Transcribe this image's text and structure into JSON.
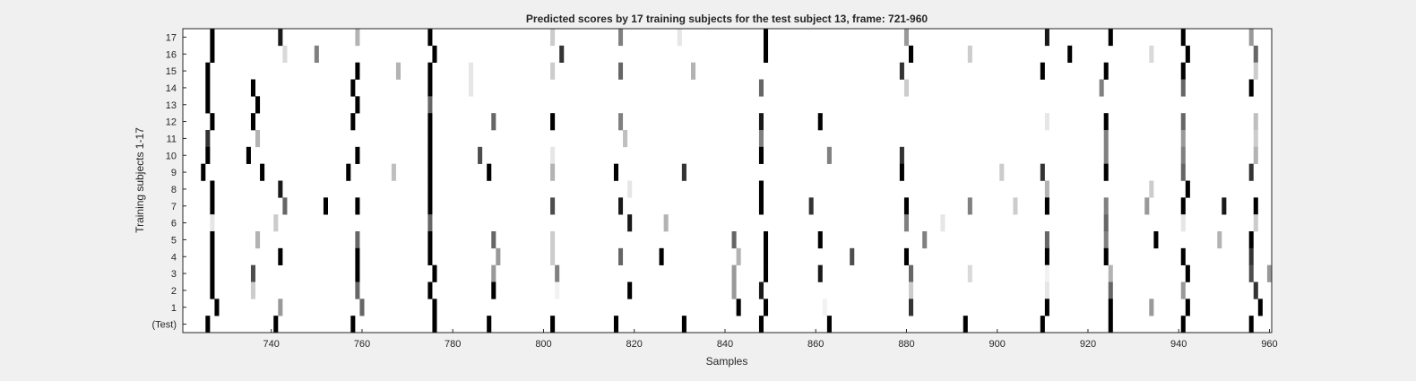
{
  "chart_data": {
    "type": "heatmap",
    "title": "Predicted scores by 17 training subjects for the test subject 13, frame: 721-960",
    "xlabel": "Samples",
    "ylabel": "Training subjects 1-17",
    "xlim": [
      721,
      960
    ],
    "xticks": [
      740,
      760,
      780,
      800,
      820,
      840,
      860,
      880,
      900,
      920,
      940,
      960
    ],
    "row_labels": [
      "17",
      "16",
      "15",
      "14",
      "13",
      "12",
      "11",
      "10",
      "9",
      "8",
      "7",
      "6",
      "5",
      "4",
      "3",
      "2",
      "1",
      "(Test)"
    ],
    "colormap": "gray (white = 0, black = 1)",
    "grid": false,
    "cell_value_unit": "score 0-1 (darkness)",
    "rows": [
      {
        "label": "17",
        "cells": [
          [
            727,
            1
          ],
          [
            742,
            0.9
          ],
          [
            759,
            0.3
          ],
          [
            775,
            1
          ],
          [
            802,
            0.2
          ],
          [
            817,
            0.5
          ],
          [
            830,
            0.1
          ],
          [
            849,
            1
          ],
          [
            880,
            0.4
          ],
          [
            911,
            0.9
          ],
          [
            925,
            1
          ],
          [
            941,
            1
          ],
          [
            956,
            0.4
          ]
        ]
      },
      {
        "label": "16",
        "cells": [
          [
            727,
            1
          ],
          [
            743,
            0.15
          ],
          [
            750,
            0.5
          ],
          [
            776,
            1
          ],
          [
            804,
            0.8
          ],
          [
            849,
            1
          ],
          [
            881,
            1
          ],
          [
            894,
            0.2
          ],
          [
            916,
            1
          ],
          [
            934,
            0.15
          ],
          [
            942,
            1
          ],
          [
            957,
            0.6
          ]
        ]
      },
      {
        "label": "15",
        "cells": [
          [
            726,
            1
          ],
          [
            759,
            1
          ],
          [
            768,
            0.3
          ],
          [
            775,
            1
          ],
          [
            784,
            0.1
          ],
          [
            802,
            0.2
          ],
          [
            817,
            0.6
          ],
          [
            833,
            0.3
          ],
          [
            879,
            0.8
          ],
          [
            910,
            1
          ],
          [
            924,
            1
          ],
          [
            941,
            1
          ],
          [
            957,
            0.2
          ]
        ]
      },
      {
        "label": "14",
        "cells": [
          [
            726,
            1
          ],
          [
            736,
            1
          ],
          [
            758,
            1
          ],
          [
            775,
            1
          ],
          [
            784,
            0.1
          ],
          [
            848,
            0.6
          ],
          [
            880,
            0.2
          ],
          [
            923,
            0.5
          ],
          [
            941,
            0.6
          ],
          [
            956,
            1
          ]
        ]
      },
      {
        "label": "13",
        "cells": [
          [
            726,
            1
          ],
          [
            737,
            1
          ],
          [
            759,
            1
          ],
          [
            775,
            0.6
          ]
        ]
      },
      {
        "label": "12",
        "cells": [
          [
            727,
            1
          ],
          [
            736,
            1
          ],
          [
            758,
            1
          ],
          [
            775,
            1
          ],
          [
            789,
            0.6
          ],
          [
            802,
            1
          ],
          [
            817,
            0.5
          ],
          [
            848,
            0.9
          ],
          [
            861,
            1
          ],
          [
            911,
            0.1
          ],
          [
            924,
            1
          ],
          [
            941,
            0.6
          ],
          [
            957,
            0.25
          ]
        ]
      },
      {
        "label": "11",
        "cells": [
          [
            726,
            0.8
          ],
          [
            737,
            0.3
          ],
          [
            775,
            1
          ],
          [
            818,
            0.25
          ],
          [
            848,
            0.5
          ],
          [
            924,
            0.5
          ],
          [
            941,
            0.4
          ],
          [
            957,
            0.2
          ]
        ]
      },
      {
        "label": "10",
        "cells": [
          [
            726,
            1
          ],
          [
            735,
            1
          ],
          [
            759,
            1
          ],
          [
            775,
            1
          ],
          [
            786,
            0.7
          ],
          [
            802,
            0.1
          ],
          [
            848,
            1
          ],
          [
            863,
            0.5
          ],
          [
            879,
            0.8
          ],
          [
            924,
            0.5
          ],
          [
            941,
            0.5
          ],
          [
            957,
            0.3
          ]
        ]
      },
      {
        "label": "9",
        "cells": [
          [
            725,
            1
          ],
          [
            738,
            1
          ],
          [
            757,
            1
          ],
          [
            767,
            0.25
          ],
          [
            775,
            1
          ],
          [
            788,
            1
          ],
          [
            802,
            0.3
          ],
          [
            816,
            1
          ],
          [
            831,
            0.8
          ],
          [
            879,
            1
          ],
          [
            901,
            0.2
          ],
          [
            910,
            0.8
          ],
          [
            924,
            1
          ],
          [
            941,
            0.6
          ],
          [
            956,
            0.8
          ]
        ]
      },
      {
        "label": "8",
        "cells": [
          [
            727,
            1
          ],
          [
            742,
            0.9
          ],
          [
            775,
            1
          ],
          [
            819,
            0.1
          ],
          [
            848,
            1
          ],
          [
            911,
            0.3
          ],
          [
            934,
            0.2
          ],
          [
            942,
            1
          ]
        ]
      },
      {
        "label": "7",
        "cells": [
          [
            727,
            1
          ],
          [
            743,
            0.6
          ],
          [
            752,
            1
          ],
          [
            759,
            1
          ],
          [
            775,
            1
          ],
          [
            802,
            0.7
          ],
          [
            817,
            0.9
          ],
          [
            848,
            1
          ],
          [
            859,
            0.8
          ],
          [
            880,
            1
          ],
          [
            894,
            0.5
          ],
          [
            904,
            0.2
          ],
          [
            911,
            1
          ],
          [
            924,
            0.5
          ],
          [
            933,
            0.4
          ],
          [
            941,
            1
          ],
          [
            950,
            0.9
          ],
          [
            957,
            1
          ]
        ]
      },
      {
        "label": "6",
        "cells": [
          [
            727,
            0.1
          ],
          [
            741,
            0.2
          ],
          [
            775,
            0.6
          ],
          [
            819,
            0.9
          ],
          [
            827,
            0.3
          ],
          [
            880,
            0.5
          ],
          [
            888,
            0.1
          ],
          [
            924,
            0.6
          ],
          [
            941,
            0.1
          ],
          [
            957,
            0.2
          ]
        ]
      },
      {
        "label": "5",
        "cells": [
          [
            727,
            1
          ],
          [
            737,
            0.3
          ],
          [
            759,
            0.6
          ],
          [
            775,
            1
          ],
          [
            789,
            0.6
          ],
          [
            802,
            0.2
          ],
          [
            842,
            0.6
          ],
          [
            849,
            1
          ],
          [
            861,
            1
          ],
          [
            884,
            0.5
          ],
          [
            911,
            0.6
          ],
          [
            924,
            0.5
          ],
          [
            935,
            1
          ],
          [
            949,
            0.3
          ],
          [
            956,
            1
          ]
        ]
      },
      {
        "label": "4",
        "cells": [
          [
            727,
            1
          ],
          [
            742,
            1
          ],
          [
            759,
            1
          ],
          [
            775,
            1
          ],
          [
            790,
            0.4
          ],
          [
            802,
            0.2
          ],
          [
            817,
            0.6
          ],
          [
            826,
            1
          ],
          [
            843,
            0.3
          ],
          [
            849,
            1
          ],
          [
            868,
            0.7
          ],
          [
            880,
            1
          ],
          [
            911,
            1
          ],
          [
            924,
            1
          ],
          [
            941,
            1
          ],
          [
            956,
            0.8
          ]
        ]
      },
      {
        "label": "3",
        "cells": [
          [
            727,
            1
          ],
          [
            736,
            0.7
          ],
          [
            759,
            1
          ],
          [
            776,
            1
          ],
          [
            789,
            0.4
          ],
          [
            803,
            0.5
          ],
          [
            842,
            0.4
          ],
          [
            849,
            1
          ],
          [
            861,
            0.9
          ],
          [
            881,
            0.6
          ],
          [
            894,
            0.15
          ],
          [
            911,
            0.05
          ],
          [
            925,
            0.3
          ],
          [
            942,
            1
          ],
          [
            956,
            0.7
          ],
          [
            960,
            0.4
          ]
        ]
      },
      {
        "label": "2",
        "cells": [
          [
            727,
            1
          ],
          [
            736,
            0.2
          ],
          [
            759,
            0.6
          ],
          [
            775,
            1
          ],
          [
            789,
            1
          ],
          [
            803,
            0.05
          ],
          [
            819,
            1
          ],
          [
            842,
            0.4
          ],
          [
            848,
            0.9
          ],
          [
            881,
            0.2
          ],
          [
            911,
            0.1
          ],
          [
            925,
            0.6
          ],
          [
            941,
            0.4
          ],
          [
            957,
            0.8
          ]
        ]
      },
      {
        "label": "1",
        "cells": [
          [
            728,
            1
          ],
          [
            742,
            0.4
          ],
          [
            760,
            0.6
          ],
          [
            776,
            1
          ],
          [
            843,
            1
          ],
          [
            849,
            1
          ],
          [
            862,
            0.05
          ],
          [
            881,
            0.8
          ],
          [
            911,
            1
          ],
          [
            925,
            1
          ],
          [
            934,
            0.4
          ],
          [
            942,
            1
          ],
          [
            958,
            1
          ]
        ]
      },
      {
        "label": "(Test)",
        "cells": [
          [
            726,
            1
          ],
          [
            741,
            1
          ],
          [
            758,
            1
          ],
          [
            776,
            1
          ],
          [
            788,
            1
          ],
          [
            802,
            1
          ],
          [
            816,
            1
          ],
          [
            831,
            1
          ],
          [
            848,
            1
          ],
          [
            863,
            1
          ],
          [
            893,
            1
          ],
          [
            910,
            1
          ],
          [
            925,
            1
          ],
          [
            941,
            1
          ],
          [
            956,
            1
          ]
        ]
      }
    ]
  }
}
